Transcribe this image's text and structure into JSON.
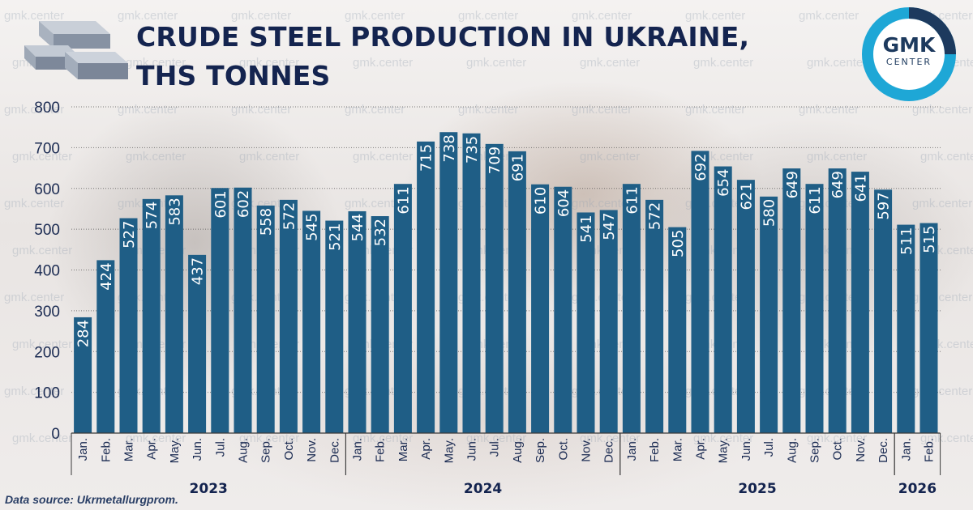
{
  "title_line1": "CRUDE STEEL PRODUCTION IN UKRAINE,",
  "title_line2": "THS TONNES",
  "logo": {
    "main": "GMK",
    "sub": "CENTER"
  },
  "source": "Data source: Ukrmetallurgprom.",
  "colors": {
    "bar": "#1f5e86",
    "title": "#14244f",
    "logo_ring": "#1ea7d6",
    "logo_dark": "#1d3a5e"
  },
  "watermark_text": "gmk.center",
  "chart_data": {
    "type": "bar",
    "ylim": [
      0,
      800
    ],
    "yticks": [
      "0",
      "100",
      "200",
      "300",
      "400",
      "500",
      "600",
      "700",
      "800"
    ],
    "grid": "horizontal dotted",
    "categories": [
      "Jan.",
      "Feb.",
      "Mar.",
      "Apr.",
      "May.",
      "Jun.",
      "Jul.",
      "Aug.",
      "Sep.",
      "Oct.",
      "Nov.",
      "Dec.",
      "Jan.",
      "Feb.",
      "Mar.",
      "Apr.",
      "May.",
      "Jun.",
      "Jul.",
      "Aug.",
      "Sep.",
      "Oct.",
      "Nov.",
      "Dec.",
      "Jan.",
      "Feb.",
      "Mar.",
      "Apr.",
      "May.",
      "Jun.",
      "Jul.",
      "Aug.",
      "Sep.",
      "Oct.",
      "Nov.",
      "Dec.",
      "Jan.",
      "Feb."
    ],
    "values": [
      284,
      424,
      527,
      574,
      583,
      437,
      601,
      602,
      558,
      572,
      545,
      521,
      544,
      532,
      611,
      715,
      738,
      735,
      709,
      691,
      610,
      604,
      541,
      547,
      611,
      572,
      505,
      692,
      654,
      621,
      580,
      649,
      611,
      649,
      641,
      597,
      511,
      515
    ],
    "year_groups": [
      {
        "label": "2023",
        "start": 0,
        "end": 11
      },
      {
        "label": "2024",
        "start": 12,
        "end": 23
      },
      {
        "label": "2025",
        "start": 24,
        "end": 35
      },
      {
        "label": "2026",
        "start": 36,
        "end": 37
      }
    ]
  }
}
